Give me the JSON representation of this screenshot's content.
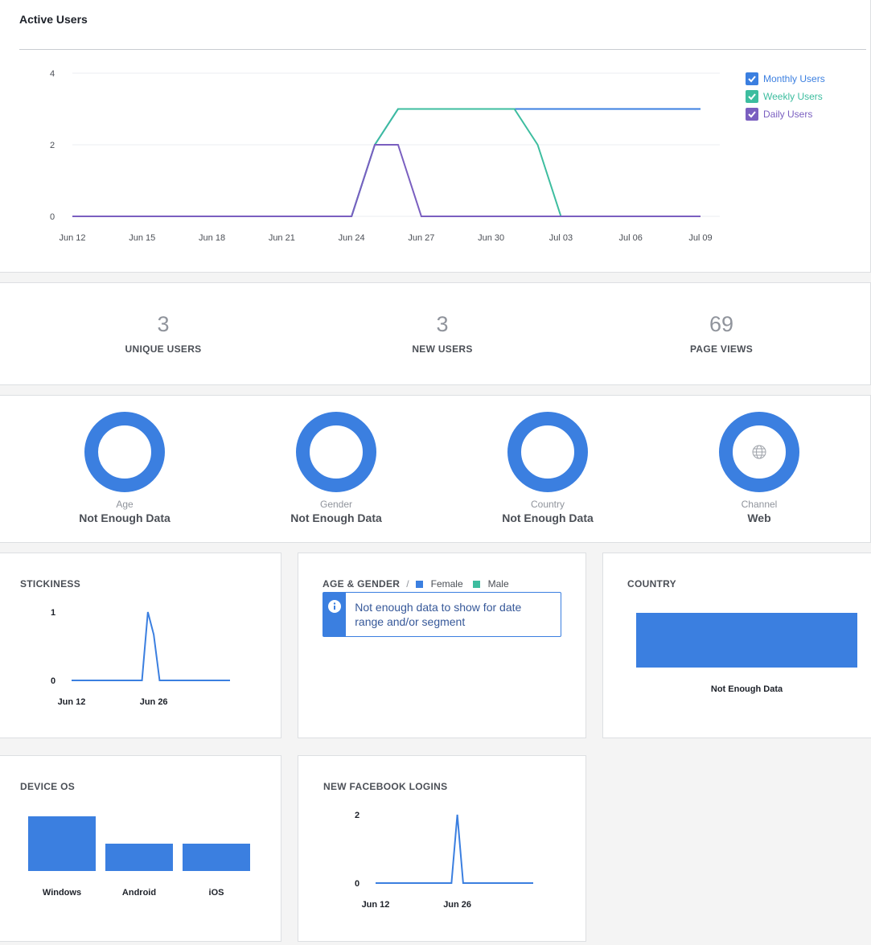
{
  "active_users": {
    "title": "Active Users",
    "legend": [
      {
        "label": "Monthly Users",
        "color": "#3b7fe0"
      },
      {
        "label": "Weekly Users",
        "color": "#3dbd9f"
      },
      {
        "label": "Daily Users",
        "color": "#7a5fc0"
      }
    ],
    "chart_data": {
      "type": "line",
      "x": [
        "Jun 12",
        "Jun 13",
        "Jun 14",
        "Jun 15",
        "Jun 16",
        "Jun 17",
        "Jun 18",
        "Jun 19",
        "Jun 20",
        "Jun 21",
        "Jun 22",
        "Jun 23",
        "Jun 24",
        "Jun 25",
        "Jun 26",
        "Jun 27",
        "Jun 28",
        "Jun 29",
        "Jun 30",
        "Jul 01",
        "Jul 02",
        "Jul 03",
        "Jul 04",
        "Jul 05",
        "Jul 06",
        "Jul 07",
        "Jul 08",
        "Jul 09"
      ],
      "tick_labels": [
        "Jun 12",
        "Jun 15",
        "Jun 18",
        "Jun 21",
        "Jun 24",
        "Jun 27",
        "Jun 30",
        "Jul 03",
        "Jul 06",
        "Jul 09"
      ],
      "y_ticks": [
        "0",
        "2",
        "4"
      ],
      "ylim": [
        0,
        4
      ],
      "grid": true,
      "legend_position": "top-right",
      "series": [
        {
          "name": "Monthly Users",
          "color": "#3b7fe0",
          "values": [
            0,
            0,
            0,
            0,
            0,
            0,
            0,
            0,
            0,
            0,
            0,
            0,
            0,
            2,
            3,
            3,
            3,
            3,
            3,
            3,
            3,
            3,
            3,
            3,
            3,
            3,
            3,
            3
          ]
        },
        {
          "name": "Weekly Users",
          "color": "#3dbd9f",
          "values": [
            0,
            0,
            0,
            0,
            0,
            0,
            0,
            0,
            0,
            0,
            0,
            0,
            0,
            2,
            3,
            3,
            3,
            3,
            3,
            3,
            2,
            0,
            0,
            0,
            0,
            0,
            0,
            0
          ]
        },
        {
          "name": "Daily Users",
          "color": "#7a5fc0",
          "values": [
            0,
            0,
            0,
            0,
            0,
            0,
            0,
            0,
            0,
            0,
            0,
            0,
            0,
            2,
            2,
            0,
            0,
            0,
            0,
            0,
            0,
            0,
            0,
            0,
            0,
            0,
            0,
            0
          ]
        }
      ]
    }
  },
  "metrics": [
    {
      "value": "3",
      "label": "UNIQUE USERS"
    },
    {
      "value": "3",
      "label": "NEW USERS"
    },
    {
      "value": "69",
      "label": "PAGE VIEWS"
    }
  ],
  "donuts": [
    {
      "caption": "Age",
      "value": "Not Enough Data",
      "icon": ""
    },
    {
      "caption": "Gender",
      "value": "Not Enough Data",
      "icon": ""
    },
    {
      "caption": "Country",
      "value": "Not Enough Data",
      "icon": ""
    },
    {
      "caption": "Channel",
      "value": "Web",
      "icon": "globe-icon"
    }
  ],
  "stickiness": {
    "title": "STICKINESS",
    "chart_data": {
      "type": "line",
      "tick_labels": [
        "Jun 12",
        "Jun 26"
      ],
      "y_ticks": [
        "0",
        "1"
      ],
      "ylim": [
        0,
        1
      ],
      "x": [
        "Jun 12",
        "Jun 13",
        "Jun 14",
        "Jun 15",
        "Jun 16",
        "Jun 17",
        "Jun 18",
        "Jun 19",
        "Jun 20",
        "Jun 21",
        "Jun 22",
        "Jun 23",
        "Jun 24",
        "Jun 25",
        "Jun 26",
        "Jun 27",
        "Jun 28",
        "Jun 29",
        "Jun 30",
        "Jul 01",
        "Jul 02",
        "Jul 03",
        "Jul 04",
        "Jul 05",
        "Jul 06",
        "Jul 07",
        "Jul 08",
        "Jul 09"
      ],
      "series": [
        {
          "color": "#3b7fe0",
          "values": [
            0,
            0,
            0,
            0,
            0,
            0,
            0,
            0,
            0,
            0,
            0,
            0,
            0,
            1,
            0.67,
            0,
            0,
            0,
            0,
            0,
            0,
            0,
            0,
            0,
            0,
            0,
            0,
            0
          ]
        }
      ]
    }
  },
  "age_gender": {
    "title": "AGE & GENDER",
    "separator": "/",
    "legend": [
      {
        "label": "Female",
        "color": "#3b7fe0"
      },
      {
        "label": "Male",
        "color": "#3dbd9f"
      }
    ],
    "notice": "Not enough data to show for date range and/or segment",
    "notice_icon": "info-icon"
  },
  "country": {
    "title": "COUNTRY",
    "caption": "Not Enough Data",
    "bar_color": "#3b7fe0"
  },
  "device_os": {
    "title": "DEVICE OS",
    "chart_data": {
      "type": "bar",
      "categories": [
        "Windows",
        "Android",
        "iOS"
      ],
      "values": [
        2,
        1,
        1
      ],
      "color": "#3b7fe0"
    }
  },
  "facebook_logins": {
    "title": "NEW FACEBOOK LOGINS",
    "chart_data": {
      "type": "line",
      "tick_labels": [
        "Jun 12",
        "Jun 26"
      ],
      "y_ticks": [
        "0",
        "2"
      ],
      "ylim": [
        0,
        2
      ],
      "x": [
        "Jun 12",
        "Jun 13",
        "Jun 14",
        "Jun 15",
        "Jun 16",
        "Jun 17",
        "Jun 18",
        "Jun 19",
        "Jun 20",
        "Jun 21",
        "Jun 22",
        "Jun 23",
        "Jun 24",
        "Jun 25",
        "Jun 26",
        "Jun 27",
        "Jun 28",
        "Jun 29",
        "Jun 30",
        "Jul 01",
        "Jul 02",
        "Jul 03",
        "Jul 04",
        "Jul 05",
        "Jul 06",
        "Jul 07",
        "Jul 08",
        "Jul 09"
      ],
      "series": [
        {
          "color": "#3b7fe0",
          "values": [
            0,
            0,
            0,
            0,
            0,
            0,
            0,
            0,
            0,
            0,
            0,
            0,
            0,
            0,
            2,
            0,
            0,
            0,
            0,
            0,
            0,
            0,
            0,
            0,
            0,
            0,
            0,
            0
          ]
        }
      ]
    }
  }
}
